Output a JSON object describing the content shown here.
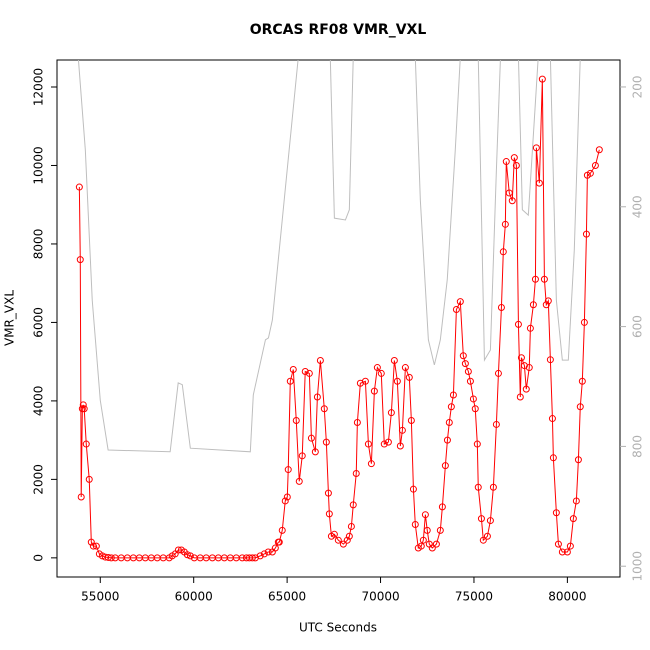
{
  "chart_data": {
    "type": "line",
    "title": "ORCAS RF08 VMR_VXL",
    "xlabel": "UTC Seconds",
    "ylabel": "VMR_VXL",
    "xlim": [
      52684,
      82816
    ],
    "xticks": [
      55000,
      60000,
      65000,
      70000,
      75000,
      80000
    ],
    "ylim": [
      -488,
      12688
    ],
    "yticks": [
      0,
      2000,
      4000,
      6000,
      8000,
      10000,
      12000
    ],
    "y2lim": [
      1018,
      155
    ],
    "y2ticks": [
      200,
      400,
      600,
      800,
      1000
    ],
    "y2_color": "#b0b0b0",
    "series": [
      {
        "axis": "y2",
        "color": "#bebebe",
        "markers": false,
        "x": [
          53820,
          54200,
          54570,
          55000,
          55420,
          58740,
          59170,
          59390,
          59820,
          63030,
          63190,
          63840,
          64000,
          64210,
          65600,
          67310,
          67530,
          68120,
          68330,
          68540,
          71860,
          72130,
          72560,
          72880,
          73200,
          73570,
          74000,
          74270,
          75230,
          75560,
          75880,
          76200,
          76420,
          77380,
          77590,
          77910,
          78230,
          78440,
          79090,
          79410,
          79730,
          80050,
          80370,
          80690
        ],
        "values": [
          150,
          305,
          556,
          723,
          806,
          809,
          694,
          697,
          803,
          809,
          714,
          622,
          619,
          589,
          150,
          150,
          419,
          422,
          405,
          150,
          150,
          389,
          622,
          664,
          622,
          522,
          305,
          150,
          150,
          656,
          639,
          339,
          150,
          150,
          405,
          414,
          255,
          150,
          150,
          556,
          656,
          656,
          472,
          150
        ]
      },
      {
        "axis": "y",
        "color": "#ff0000",
        "markers": true,
        "x": [
          53880,
          53930,
          53980,
          54040,
          54090,
          54140,
          54250,
          54410,
          54520,
          54630,
          54790,
          54950,
          55110,
          55270,
          55430,
          55590,
          55800,
          56120,
          56450,
          56770,
          57090,
          57410,
          57730,
          58050,
          58370,
          58690,
          58850,
          59010,
          59180,
          59340,
          59500,
          59660,
          59820,
          60030,
          60350,
          60670,
          61000,
          61320,
          61640,
          61960,
          62280,
          62600,
          62820,
          62980,
          63140,
          63300,
          63560,
          63780,
          63990,
          64210,
          64370,
          64530,
          64580,
          64740,
          64900,
          65010,
          65060,
          65170,
          65330,
          65490,
          65650,
          65810,
          65970,
          66190,
          66300,
          66510,
          66620,
          66780,
          66990,
          67100,
          67210,
          67260,
          67370,
          67530,
          67740,
          68010,
          68220,
          68330,
          68440,
          68540,
          68700,
          68760,
          68920,
          69190,
          69350,
          69510,
          69670,
          69830,
          70040,
          70200,
          70420,
          70580,
          70740,
          70900,
          71060,
          71170,
          71330,
          71540,
          71650,
          71760,
          71860,
          72020,
          72180,
          72290,
          72400,
          72500,
          72610,
          72770,
          72990,
          73200,
          73310,
          73470,
          73580,
          73680,
          73790,
          73900,
          74060,
          74270,
          74430,
          74540,
          74700,
          74810,
          74970,
          75070,
          75180,
          75230,
          75400,
          75500,
          75720,
          75880,
          76040,
          76200,
          76310,
          76470,
          76570,
          76680,
          76730,
          76890,
          77050,
          77160,
          77270,
          77380,
          77480,
          77540,
          77700,
          77800,
          77960,
          78020,
          78180,
          78290,
          78340,
          78500,
          78660,
          78770,
          78870,
          78980,
          79090,
          79200,
          79250,
          79410,
          79520,
          79730,
          80000,
          80160,
          80320,
          80480,
          80590,
          80690,
          80800,
          80910,
          81020,
          81070,
          81230,
          81500,
          81710
        ],
        "values": [
          9450,
          7600,
          1550,
          3800,
          3900,
          3800,
          2900,
          2000,
          400,
          300,
          300,
          100,
          50,
          20,
          10,
          0,
          0,
          0,
          0,
          0,
          0,
          0,
          0,
          0,
          0,
          0,
          50,
          100,
          200,
          200,
          150,
          80,
          50,
          0,
          0,
          0,
          0,
          0,
          0,
          0,
          0,
          0,
          0,
          0,
          0,
          0,
          50,
          100,
          150,
          150,
          250,
          400,
          400,
          700,
          1450,
          1550,
          2250,
          4500,
          4800,
          3500,
          1950,
          2600,
          4750,
          4700,
          3050,
          2700,
          4100,
          5030,
          3800,
          2950,
          1650,
          1120,
          550,
          600,
          450,
          350,
          450,
          550,
          800,
          1350,
          2150,
          3450,
          4450,
          4500,
          2900,
          2400,
          4250,
          4850,
          4700,
          2900,
          2950,
          3700,
          5030,
          4500,
          2850,
          3250,
          4850,
          4600,
          3500,
          1750,
          850,
          250,
          300,
          450,
          1100,
          700,
          350,
          250,
          350,
          700,
          1300,
          2350,
          3000,
          3450,
          3850,
          4150,
          6330,
          6530,
          5150,
          4950,
          4750,
          4500,
          4050,
          3800,
          2900,
          1800,
          1000,
          450,
          550,
          950,
          1800,
          3400,
          4700,
          6380,
          7800,
          8500,
          10100,
          9300,
          9100,
          10200,
          10000,
          5950,
          4100,
          5100,
          4900,
          4300,
          4850,
          5850,
          6450,
          7100,
          10450,
          9550,
          12200,
          7100,
          6450,
          6550,
          5050,
          3550,
          2550,
          1150,
          350,
          150,
          150,
          300,
          1000,
          1450,
          2500,
          3850,
          4500,
          6000,
          8250,
          9750,
          9800,
          10000,
          10400
        ]
      }
    ]
  }
}
